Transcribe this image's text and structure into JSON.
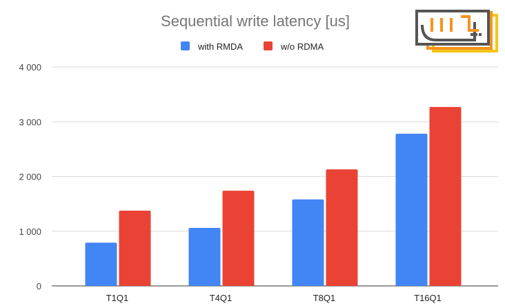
{
  "logo": {
    "text": "پادیس",
    "colors": [
      "#555555",
      "#f7931e",
      "#f5c518"
    ]
  },
  "chart_data": {
    "type": "bar",
    "title": "Sequential write latency [us]",
    "xlabel": "",
    "ylabel": "",
    "categories": [
      "T1Q1",
      "T4Q1",
      "T8Q1",
      "T16Q1"
    ],
    "series": [
      {
        "name": "with RMDA",
        "color": "#4285f4",
        "values": [
          790,
          1060,
          1580,
          2780
        ]
      },
      {
        "name": "w/o RDMA",
        "color": "#ea4335",
        "values": [
          1375,
          1740,
          2130,
          3270
        ]
      }
    ],
    "ylim": [
      0,
      4000
    ],
    "yticks": [
      0,
      1000,
      2000,
      3000,
      4000
    ],
    "ytick_labels": [
      "0",
      "1 000",
      "2 000",
      "3 000",
      "4 000"
    ],
    "grid": true,
    "legend": "top-center"
  }
}
